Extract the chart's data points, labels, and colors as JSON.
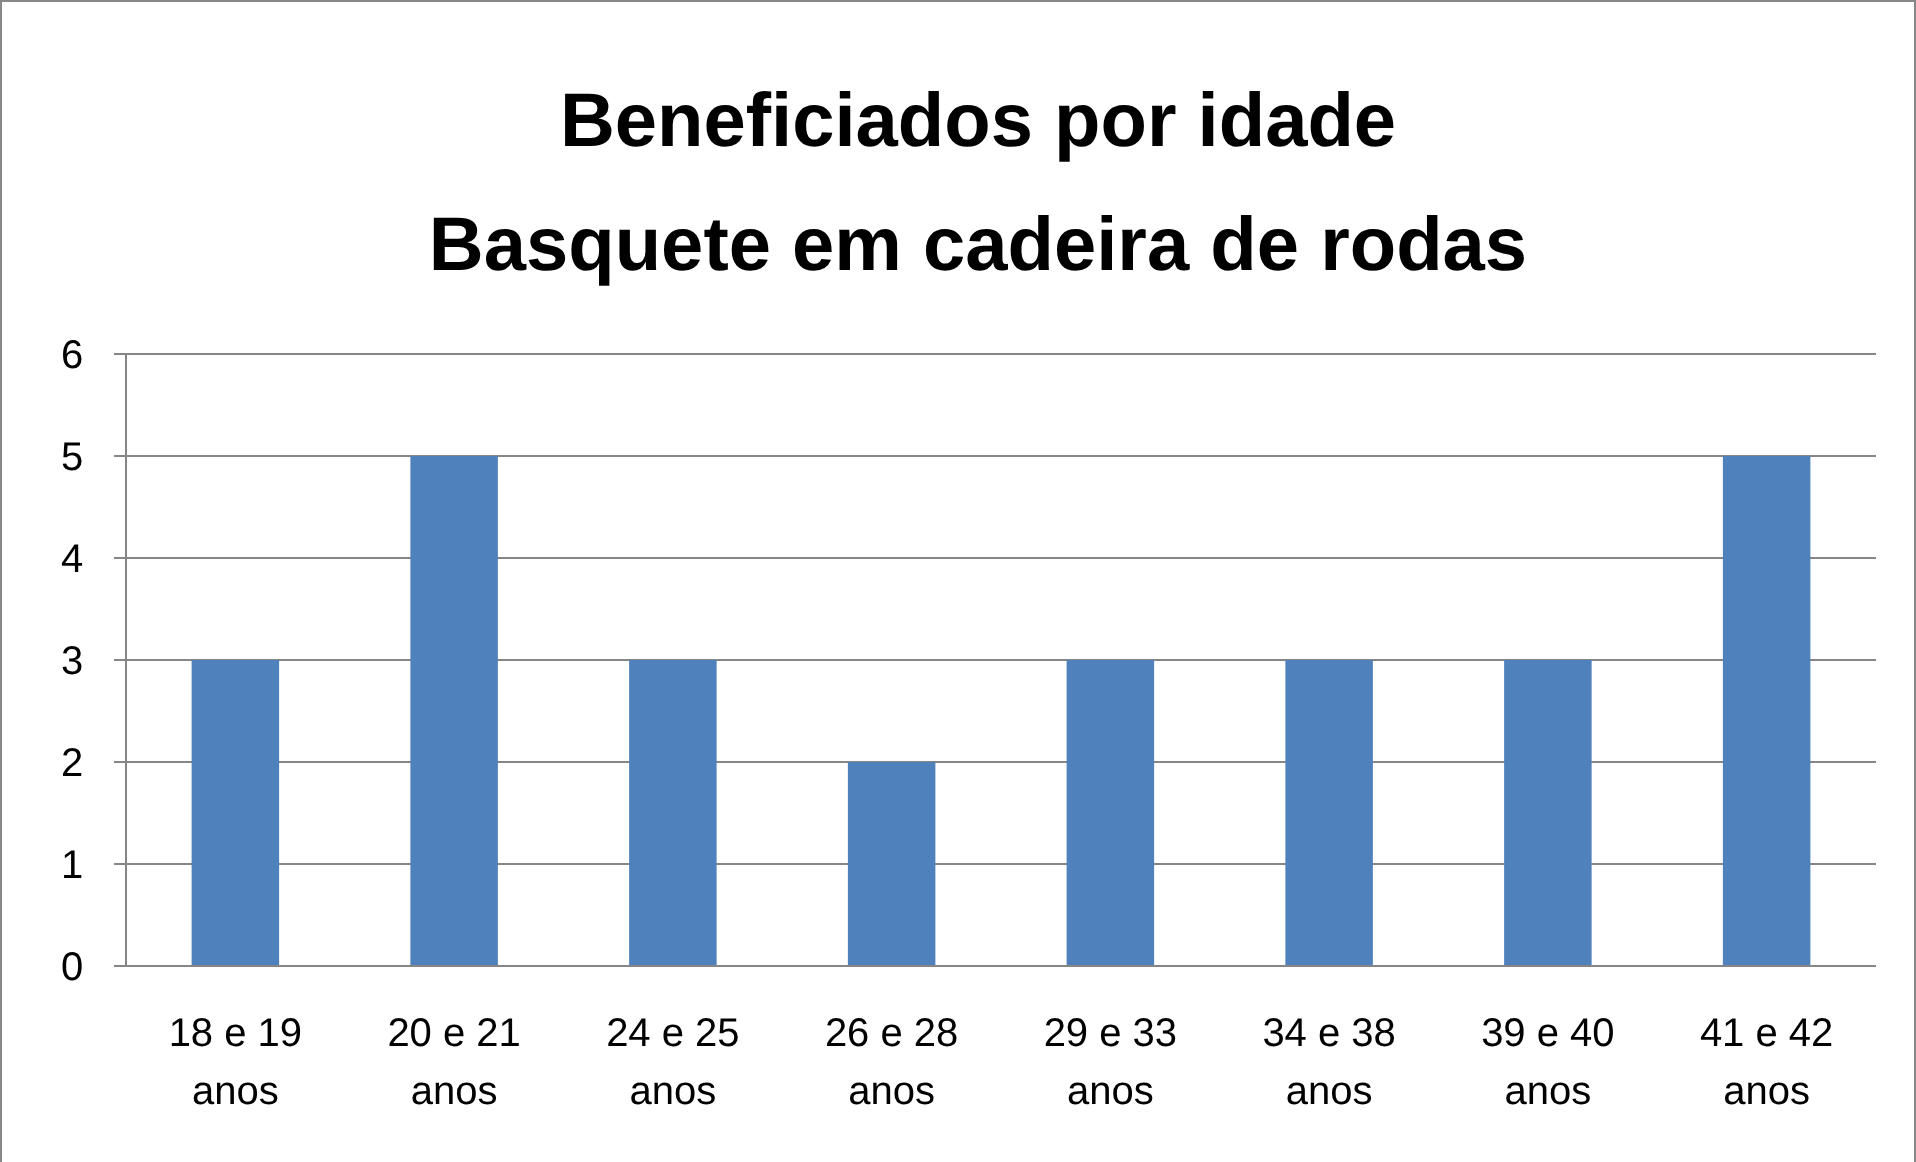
{
  "chart_data": {
    "type": "bar",
    "title": "Beneficiados por idade\nBasquete em cadeira de rodas",
    "categories": [
      "18 e 19 anos",
      "20 e 21 anos",
      "24 e 25 anos",
      "26 e 28 anos",
      "29 e 33 anos",
      "34 e 38 anos",
      "39 e 40 anos",
      "41 e 42 anos"
    ],
    "values": [
      3,
      5,
      3,
      2,
      3,
      3,
      3,
      5
    ],
    "color": "#4f81bd",
    "ylim": [
      0,
      6
    ],
    "yticks": [
      0,
      1,
      2,
      3,
      4,
      5,
      6
    ],
    "grid": "y"
  }
}
